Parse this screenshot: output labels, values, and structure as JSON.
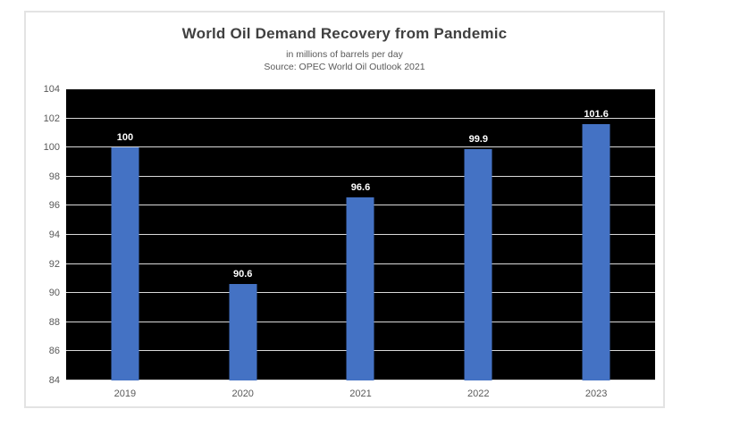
{
  "chart": {
    "title": "World Oil Demand Recovery from Pandemic",
    "subtitle": "in millions of barrels per day",
    "source": "Source: OPEC World Oil Outlook 2021"
  },
  "chart_data": {
    "type": "bar",
    "title": "World Oil Demand Recovery from Pandemic",
    "subtitle": "in millions of barrels per day",
    "source": "Source: OPEC World Oil Outlook 2021",
    "categories": [
      "2019",
      "2020",
      "2021",
      "2022",
      "2023"
    ],
    "values": [
      100,
      90.6,
      96.6,
      99.9,
      101.6
    ],
    "data_labels": [
      "100",
      "90.6",
      "96.6",
      "99.9",
      "101.6"
    ],
    "xlabel": "",
    "ylabel": "",
    "ylim": [
      84,
      104
    ],
    "yticks": [
      84,
      86,
      88,
      90,
      92,
      94,
      96,
      98,
      100,
      102,
      104
    ],
    "grid": true,
    "legend": false,
    "colors": {
      "bar": "#4472C4",
      "plot_background": "#000000",
      "gridline": "#d9d9d9",
      "axis_text": "#595959",
      "title_text": "#404040",
      "data_label_text": "#ffffff",
      "container_border": "#e3e3e3"
    }
  }
}
